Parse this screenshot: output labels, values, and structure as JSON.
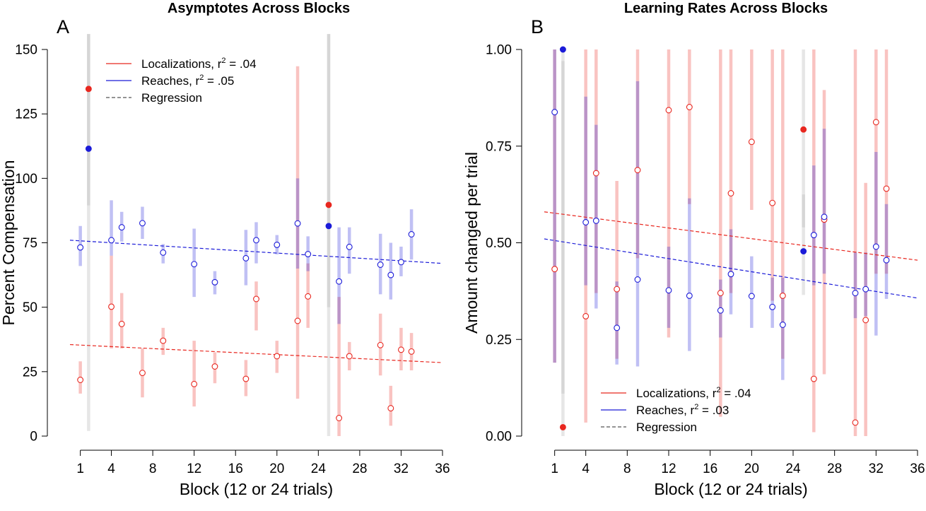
{
  "chart_data": [
    {
      "type": "scatter",
      "panel": "A",
      "title": "Asymptotes Across Blocks",
      "xlabel": "Block (12 or 24 trials)",
      "ylabel": "Percent Compensation",
      "xlim": [
        0,
        36
      ],
      "ylim": [
        0,
        155
      ],
      "xticks": [
        1,
        4,
        8,
        12,
        16,
        20,
        24,
        28,
        32,
        36
      ],
      "yticks": [
        0,
        25,
        50,
        75,
        100,
        125,
        150
      ],
      "ytick_labels": [
        "0",
        "25",
        "50",
        "75",
        "100",
        "125",
        "150"
      ],
      "legend_position": "top-center",
      "legend": [
        {
          "label": "Localizations, r",
          "sup": "2",
          "suffix": " = .04",
          "color": "#e8271f",
          "style": "solid"
        },
        {
          "label": "Reaches, r",
          "sup": "2",
          "suffix": " = .05",
          "color": "#1b1bd8",
          "style": "solid"
        },
        {
          "label": "Regression",
          "sup": "",
          "suffix": "",
          "color": "#555555",
          "style": "dashed"
        }
      ],
      "series": [
        {
          "name": "Localizations",
          "color": "#e8271f",
          "points": [
            {
              "x": 1,
              "y": 21.8,
              "lo": 16.5,
              "hi": 29
            },
            {
              "x": 4,
              "y": 50.2,
              "lo": 34,
              "hi": 70
            },
            {
              "x": 5,
              "y": 43.5,
              "lo": 34,
              "hi": 55.5
            },
            {
              "x": 7,
              "y": 24.5,
              "lo": 15,
              "hi": 34
            },
            {
              "x": 9,
              "y": 37,
              "lo": 31.5,
              "hi": 42
            },
            {
              "x": 12,
              "y": 20.2,
              "lo": 11.5,
              "hi": 37
            },
            {
              "x": 14,
              "y": 27,
              "lo": 20.5,
              "hi": 32.5
            },
            {
              "x": 17,
              "y": 22.2,
              "lo": 15.5,
              "hi": 29.5
            },
            {
              "x": 18,
              "y": 53.2,
              "lo": 41,
              "hi": 60
            },
            {
              "x": 20,
              "y": 31,
              "lo": 24.5,
              "hi": 37
            },
            {
              "x": 22,
              "y": 44.7,
              "lo": 14.5,
              "hi": 143.5
            },
            {
              "x": 23,
              "y": 54.2,
              "lo": 42,
              "hi": 67
            },
            {
              "x": 26,
              "y": 7,
              "lo": 0,
              "hi": 54
            },
            {
              "x": 27,
              "y": 31,
              "lo": 25.5,
              "hi": 36.5
            },
            {
              "x": 30,
              "y": 35.3,
              "lo": 23.5,
              "hi": 47.5
            },
            {
              "x": 31,
              "y": 10.8,
              "lo": 4,
              "hi": 19.5
            },
            {
              "x": 32,
              "y": 33.5,
              "lo": 25.5,
              "hi": 42
            },
            {
              "x": 33,
              "y": 32.8,
              "lo": 25.5,
              "hi": 40
            }
          ],
          "regression": {
            "y_at_0": 35.5,
            "y_at_36": 28.5
          }
        },
        {
          "name": "Reaches",
          "color": "#1b1bd8",
          "points": [
            {
              "x": 1,
              "y": 73.2,
              "lo": 66,
              "hi": 81.5
            },
            {
              "x": 4,
              "y": 76,
              "lo": 70,
              "hi": 91.5
            },
            {
              "x": 5,
              "y": 81,
              "lo": 75.5,
              "hi": 87
            },
            {
              "x": 7,
              "y": 82.6,
              "lo": 76.5,
              "hi": 89
            },
            {
              "x": 9,
              "y": 71.2,
              "lo": 67,
              "hi": 74.5
            },
            {
              "x": 12,
              "y": 66.7,
              "lo": 54,
              "hi": 80.5
            },
            {
              "x": 14,
              "y": 59.7,
              "lo": 55,
              "hi": 64
            },
            {
              "x": 17,
              "y": 69,
              "lo": 58.5,
              "hi": 80
            },
            {
              "x": 18,
              "y": 76,
              "lo": 67,
              "hi": 83
            },
            {
              "x": 20,
              "y": 74.2,
              "lo": 70.5,
              "hi": 78
            },
            {
              "x": 22,
              "y": 82.5,
              "lo": 65,
              "hi": 100
            },
            {
              "x": 23,
              "y": 70.6,
              "lo": 64,
              "hi": 77.5
            },
            {
              "x": 26,
              "y": 60,
              "lo": 43.5,
              "hi": 81
            },
            {
              "x": 27,
              "y": 73.4,
              "lo": 63,
              "hi": 81
            },
            {
              "x": 30,
              "y": 66.5,
              "lo": 55,
              "hi": 78.5
            },
            {
              "x": 31,
              "y": 62.5,
              "lo": 53,
              "hi": 75
            },
            {
              "x": 32,
              "y": 67.5,
              "lo": 62,
              "hi": 73.5
            },
            {
              "x": 33,
              "y": 78.3,
              "lo": 68.5,
              "hi": 88
            }
          ],
          "regression": {
            "y_at_0": 76,
            "y_at_36": 67
          }
        },
        {
          "name": "Excluded",
          "filled": true,
          "points": [
            {
              "x": 1.8,
              "y": 134.7,
              "color": "#e8271f",
              "lo": 89.5,
              "hi": 156
            },
            {
              "x": 1.8,
              "y": 111.5,
              "color": "#1b1bd8",
              "lo": 2,
              "hi": 156
            },
            {
              "x": 25,
              "y": 89.7,
              "color": "#e8271f",
              "lo": 0,
              "hi": 156
            },
            {
              "x": 25,
              "y": 81.5,
              "color": "#1b1bd8",
              "lo": 50,
              "hi": 156
            }
          ]
        }
      ]
    },
    {
      "type": "scatter",
      "panel": "B",
      "title": "Learning Rates Across Blocks",
      "xlabel": "Block (12 or 24 trials)",
      "ylabel": "Amount changed per trial",
      "xlim": [
        0,
        36
      ],
      "ylim": [
        0,
        1
      ],
      "xticks": [
        1,
        4,
        8,
        12,
        16,
        20,
        24,
        28,
        32,
        36
      ],
      "yticks": [
        0,
        0.25,
        0.5,
        0.75,
        1
      ],
      "ytick_labels": [
        "0.00",
        "0.25",
        "0.50",
        "0.75",
        "1.00"
      ],
      "legend_position": "bottom-center",
      "legend": [
        {
          "label": "Localizations, r",
          "sup": "2",
          "suffix": " = .04",
          "color": "#e8271f",
          "style": "solid"
        },
        {
          "label": "Reaches, r",
          "sup": "2",
          "suffix": " = .03",
          "color": "#1b1bd8",
          "style": "solid"
        },
        {
          "label": "Regression",
          "sup": "",
          "suffix": "",
          "color": "#555555",
          "style": "dashed"
        }
      ],
      "series": [
        {
          "name": "Localizations",
          "color": "#e8271f",
          "points": [
            {
              "x": 1,
              "y": 0.432,
              "lo": 0.19,
              "hi": 1.0
            },
            {
              "x": 4,
              "y": 0.31,
              "lo": 0.035,
              "hi": 1.0
            },
            {
              "x": 5,
              "y": 0.68,
              "lo": 0.37,
              "hi": 1.0
            },
            {
              "x": 7,
              "y": 0.38,
              "lo": 0.2,
              "hi": 0.66
            },
            {
              "x": 9,
              "y": 0.688,
              "lo": 0.46,
              "hi": 1.0
            },
            {
              "x": 12,
              "y": 0.843,
              "lo": 0.255,
              "hi": 1.0
            },
            {
              "x": 14,
              "y": 0.851,
              "lo": 0.6,
              "hi": 1.0
            },
            {
              "x": 17,
              "y": 0.37,
              "lo": 0.05,
              "hi": 1.0
            },
            {
              "x": 18,
              "y": 0.628,
              "lo": 0.37,
              "hi": 1.0
            },
            {
              "x": 20,
              "y": 0.761,
              "lo": 0.585,
              "hi": 1.0
            },
            {
              "x": 22,
              "y": 0.603,
              "lo": 0.35,
              "hi": 1.0
            },
            {
              "x": 23,
              "y": 0.363,
              "lo": 0.2,
              "hi": 1.0
            },
            {
              "x": 26,
              "y": 0.148,
              "lo": 0.01,
              "hi": 1.0
            },
            {
              "x": 27,
              "y": 0.56,
              "lo": 0.16,
              "hi": 0.895
            },
            {
              "x": 30,
              "y": 0.035,
              "lo": 0.0,
              "hi": 1.0
            },
            {
              "x": 31,
              "y": 0.3,
              "lo": 0.0,
              "hi": 0.655
            },
            {
              "x": 32,
              "y": 0.812,
              "lo": 0.42,
              "hi": 1.0
            },
            {
              "x": 33,
              "y": 0.64,
              "lo": 0.42,
              "hi": 1.0
            }
          ],
          "regression": {
            "y_at_0": 0.58,
            "y_at_36": 0.455
          }
        },
        {
          "name": "Reaches",
          "color": "#1b1bd8",
          "points": [
            {
              "x": 1,
              "y": 0.838,
              "lo": 0.19,
              "hi": 1.0
            },
            {
              "x": 4,
              "y": 0.553,
              "lo": 0.39,
              "hi": 0.878
            },
            {
              "x": 5,
              "y": 0.557,
              "lo": 0.33,
              "hi": 0.805
            },
            {
              "x": 7,
              "y": 0.28,
              "lo": 0.185,
              "hi": 0.4
            },
            {
              "x": 9,
              "y": 0.405,
              "lo": 0.18,
              "hi": 0.918
            },
            {
              "x": 12,
              "y": 0.377,
              "lo": 0.28,
              "hi": 0.49
            },
            {
              "x": 14,
              "y": 0.363,
              "lo": 0.22,
              "hi": 0.615
            },
            {
              "x": 17,
              "y": 0.325,
              "lo": 0.255,
              "hi": 0.405
            },
            {
              "x": 18,
              "y": 0.419,
              "lo": 0.315,
              "hi": 0.535
            },
            {
              "x": 20,
              "y": 0.362,
              "lo": 0.28,
              "hi": 0.465
            },
            {
              "x": 22,
              "y": 0.334,
              "lo": 0.28,
              "hi": 0.41
            },
            {
              "x": 23,
              "y": 0.288,
              "lo": 0.145,
              "hi": 0.41
            },
            {
              "x": 26,
              "y": 0.52,
              "lo": 0.39,
              "hi": 0.7
            },
            {
              "x": 27,
              "y": 0.567,
              "lo": 0.42,
              "hi": 0.795
            },
            {
              "x": 30,
              "y": 0.37,
              "lo": 0.305,
              "hi": 0.475
            },
            {
              "x": 31,
              "y": 0.38,
              "lo": 0.31,
              "hi": 0.475
            },
            {
              "x": 32,
              "y": 0.49,
              "lo": 0.26,
              "hi": 0.735
            },
            {
              "x": 33,
              "y": 0.455,
              "lo": 0.355,
              "hi": 0.6
            }
          ],
          "regression": {
            "y_at_0": 0.51,
            "y_at_36": 0.357
          }
        },
        {
          "name": "Excluded",
          "filled": true,
          "points": [
            {
              "x": 1.8,
              "y": 1.0,
              "color": "#1b1bd8",
              "lo": 0.0,
              "hi": 1.0
            },
            {
              "x": 1.8,
              "y": 0.023,
              "color": "#e8271f",
              "lo": 0.11,
              "hi": 0.97
            },
            {
              "x": 25,
              "y": 0.793,
              "color": "#e8271f",
              "lo": 0.365,
              "hi": 1.0
            },
            {
              "x": 25,
              "y": 0.478,
              "color": "#1b1bd8",
              "lo": 0.54,
              "hi": 0.625
            }
          ]
        }
      ]
    }
  ]
}
